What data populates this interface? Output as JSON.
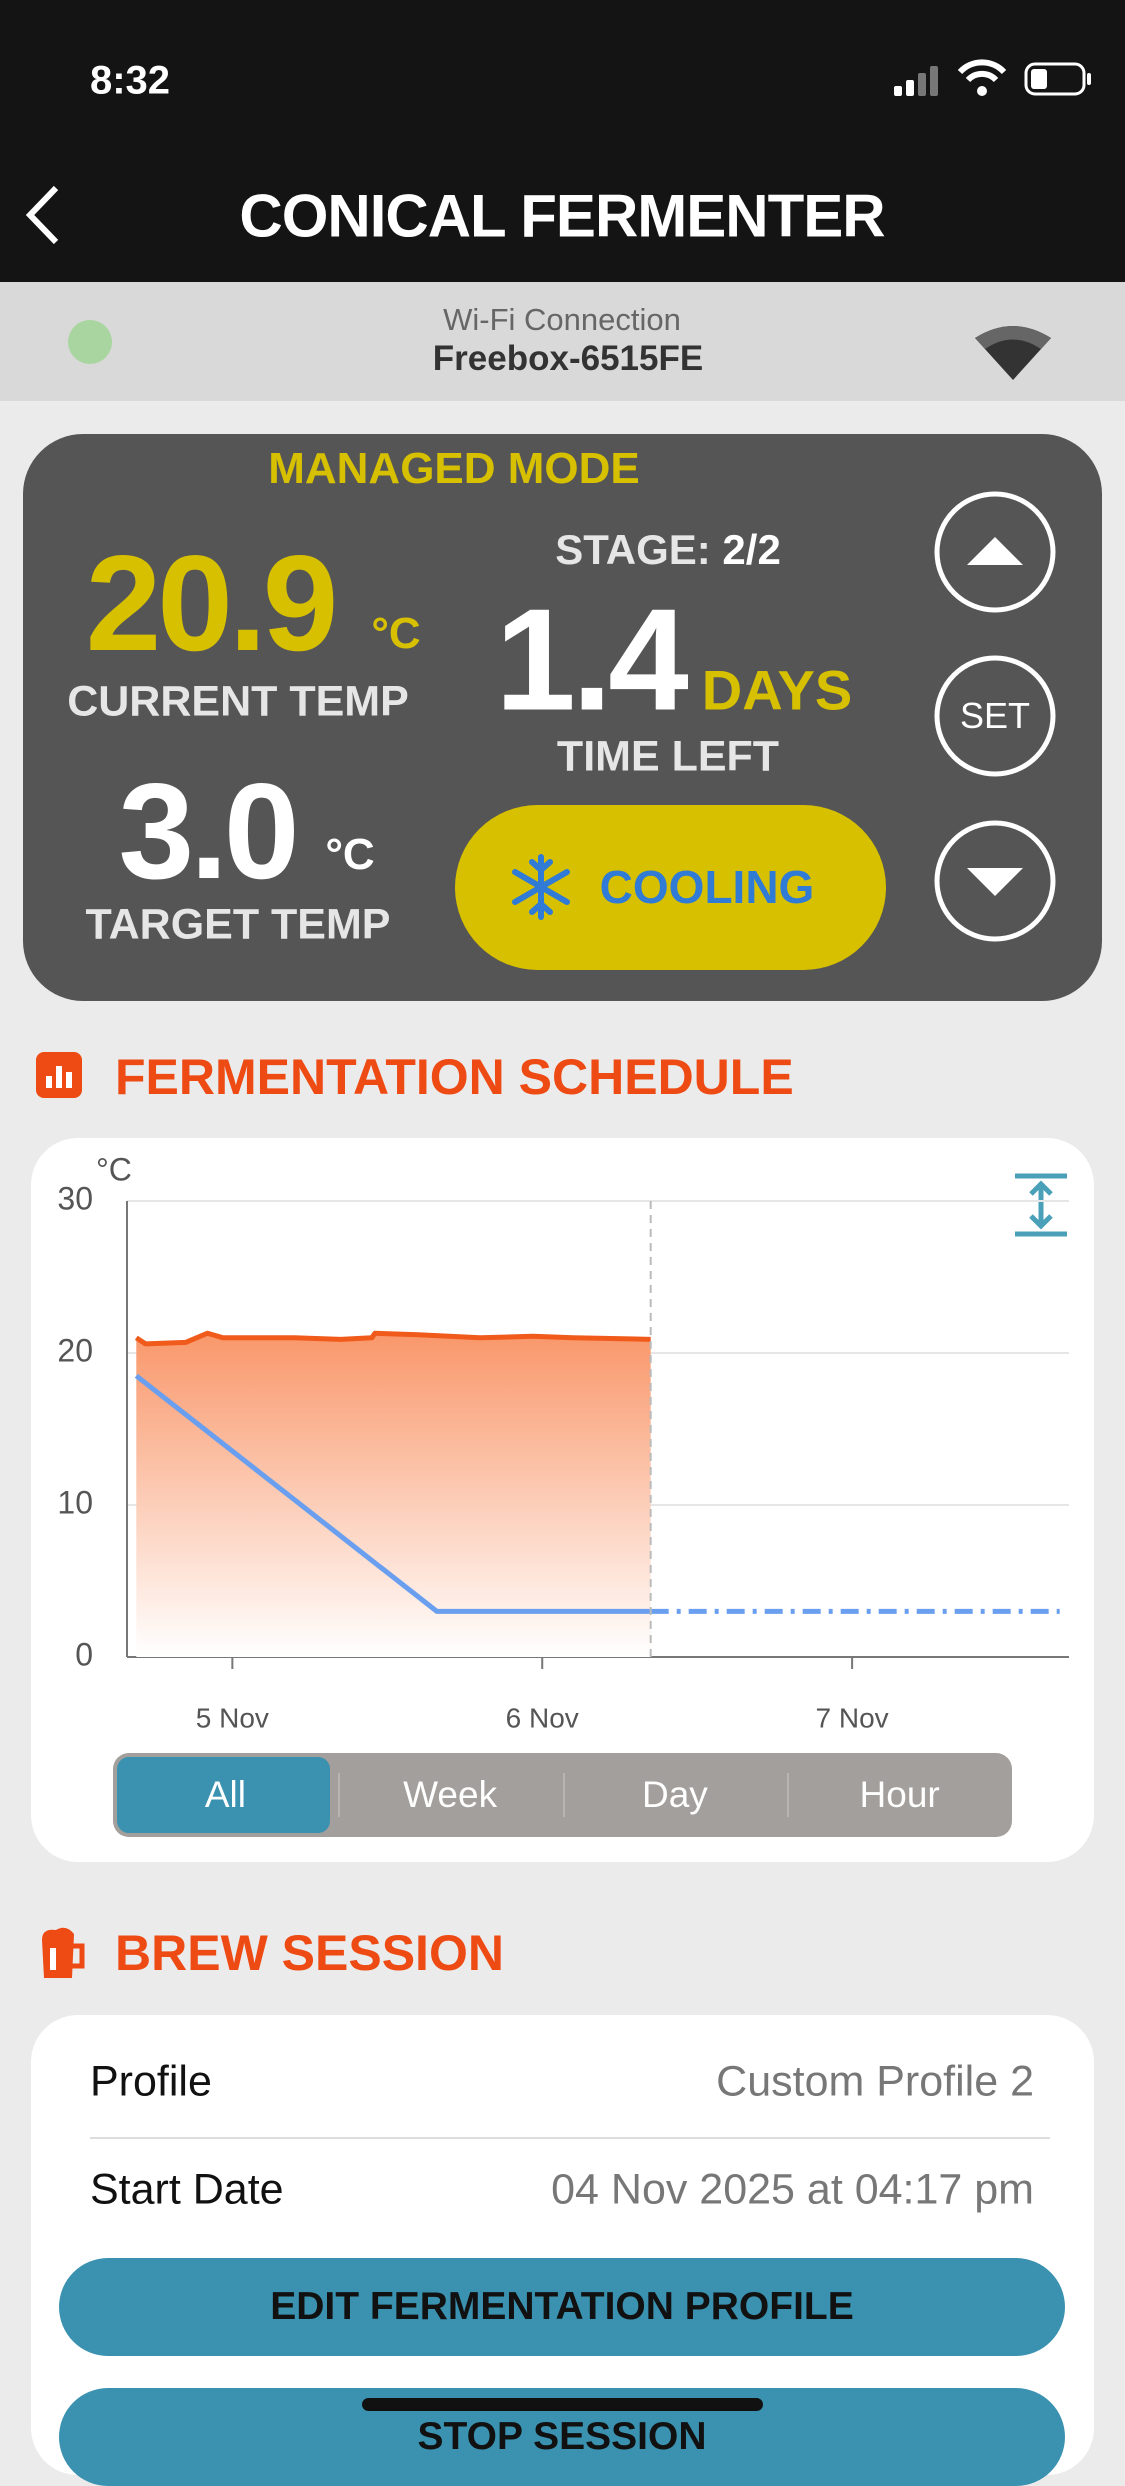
{
  "status": {
    "time": "8:32"
  },
  "header": {
    "title": "CONICAL FERMENTER"
  },
  "wifi": {
    "label": "Wi-Fi Connection",
    "network": "Freebox-6515FE"
  },
  "panel": {
    "mode": "MANAGED MODE",
    "current_temp": "20.9",
    "current_unit": "°C",
    "current_label": "CURRENT TEMP",
    "target_temp": "3.0",
    "target_unit": "°C",
    "target_label": "TARGET TEMP",
    "stage_label": "STAGE:",
    "stage": "2/2",
    "time_left": "1.4",
    "time_unit": "DAYS",
    "time_label": "TIME LEFT",
    "status": "COOLING",
    "set_button": "SET"
  },
  "schedule": {
    "title": "FERMENTATION SCHEDULE",
    "ranges": [
      "All",
      "Week",
      "Day",
      "Hour"
    ]
  },
  "chart_data": {
    "type": "line",
    "y_unit": "°C",
    "xlim": [
      4.66,
      7.7
    ],
    "ylim": [
      0,
      30
    ],
    "xticks": [
      {
        "value": 5,
        "label": "5 Nov"
      },
      {
        "value": 6,
        "label": "6 Nov"
      },
      {
        "value": 7,
        "label": "7 Nov"
      }
    ],
    "yticks": [
      0,
      10,
      20,
      30
    ],
    "grid": true,
    "marker_x": 6.35,
    "series": [
      {
        "color": "#f05a1a",
        "area": true,
        "style": "solid",
        "x": [
          4.69,
          4.72,
          4.85,
          4.92,
          4.97,
          5.2,
          5.35,
          5.45,
          5.46,
          5.6,
          5.8,
          5.97,
          6.1,
          6.35
        ],
        "values": [
          21.0,
          20.6,
          20.7,
          21.3,
          21.0,
          21.0,
          20.9,
          21.0,
          21.3,
          21.2,
          21.0,
          21.1,
          21.0,
          20.9
        ]
      },
      {
        "color": "#6a9ff0",
        "area": false,
        "style": "solid",
        "x": [
          4.69,
          5.66,
          6.35
        ],
        "values": [
          18.5,
          3.0,
          3.0
        ]
      },
      {
        "color": "#6a9ff0",
        "area": false,
        "style": "dash-dot",
        "x": [
          6.35,
          7.67
        ],
        "values": [
          3.0,
          3.0
        ]
      }
    ]
  },
  "session": {
    "title": "BREW SESSION",
    "rows": [
      [
        "Profile",
        "Custom Profile 2"
      ],
      [
        "Start Date",
        "04 Nov 2025 at 04:17 pm"
      ]
    ],
    "buttons": [
      "EDIT FERMENTATION PROFILE",
      "STOP SESSION"
    ]
  }
}
